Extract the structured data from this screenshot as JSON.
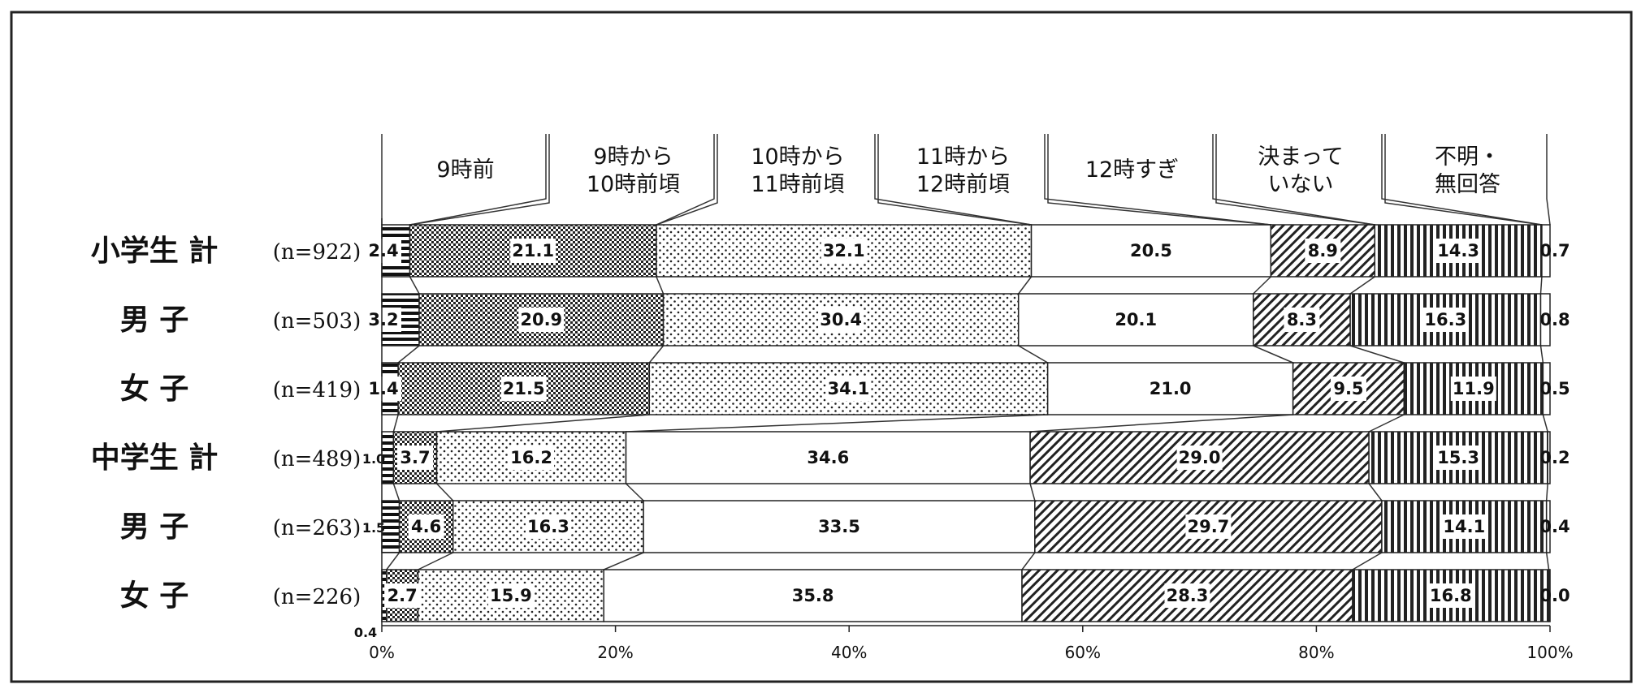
{
  "chart_data": {
    "type": "bar",
    "orientation": "horizontal",
    "stacked": true,
    "percent": true,
    "title": "",
    "xlabel": "",
    "ylabel": "",
    "xlim": [
      0,
      100
    ],
    "grid": false,
    "legend_position": "top",
    "categories": [
      {
        "label": "小学生 計",
        "n": "(n=922)"
      },
      {
        "label": "男 子",
        "n": "(n=503)"
      },
      {
        "label": "女 子",
        "n": "(n=419)"
      },
      {
        "label": "中学生 計",
        "n": "(n=489)"
      },
      {
        "label": "男 子",
        "n": "(n=263)"
      },
      {
        "label": "女 子",
        "n": "(n=226)"
      }
    ],
    "series": [
      {
        "name": "9時前",
        "values": [
          2.4,
          3.2,
          1.4,
          1.0,
          1.5,
          0.4
        ]
      },
      {
        "name": "9時から\n10時前頃",
        "values": [
          21.1,
          20.9,
          21.5,
          3.7,
          4.6,
          2.7
        ]
      },
      {
        "name": "10時から\n11時前頃",
        "values": [
          32.1,
          30.4,
          34.1,
          16.2,
          16.3,
          15.9
        ]
      },
      {
        "name": "11時から\n12時前頃",
        "values": [
          20.5,
          20.1,
          21.0,
          34.6,
          33.5,
          35.8
        ]
      },
      {
        "name": "12時すぎ",
        "values": [
          8.9,
          8.3,
          9.5,
          29.0,
          29.7,
          28.3
        ]
      },
      {
        "name": "決まって\nいない",
        "values": [
          14.3,
          16.3,
          11.9,
          15.3,
          14.1,
          16.8
        ]
      },
      {
        "name": "不明・\n無回答",
        "values": [
          0.7,
          0.8,
          0.5,
          0.2,
          0.4,
          0.0
        ]
      }
    ],
    "label_text": [
      [
        "2.4",
        "21.1",
        "32.1",
        "20.5",
        "8.9",
        "14.3",
        "0.7"
      ],
      [
        "3.2",
        "20.9",
        "30.4",
        "20.1",
        "8.3",
        "16.3",
        "0.8"
      ],
      [
        "1.4",
        "21.5",
        "34.1",
        "21.0",
        "9.5",
        "11.9",
        "0.5"
      ],
      [
        "1.0",
        "3.7",
        "16.2",
        "34.6",
        "29.0",
        "15.3",
        "0.2"
      ],
      [
        "1.5",
        "4.6",
        "16.3",
        "33.5",
        "29.7",
        "14.1",
        "0.4"
      ],
      [
        "0.4",
        "2.7",
        "15.9",
        "35.8",
        "28.3",
        "16.8",
        "0.0"
      ]
    ],
    "x_ticks": [
      "0%",
      "20%",
      "40%",
      "60%",
      "80%",
      "100%"
    ]
  }
}
